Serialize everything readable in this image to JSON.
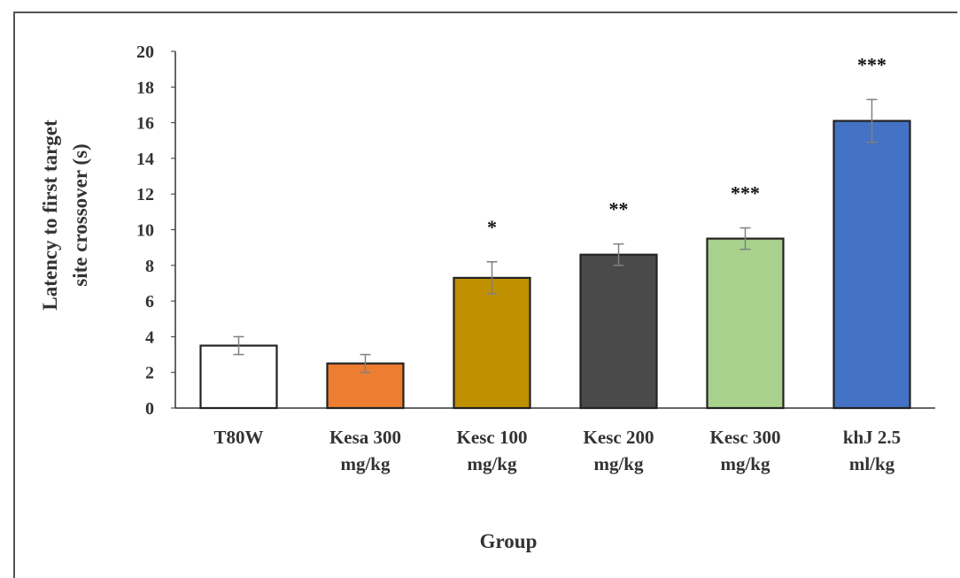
{
  "chart_data": {
    "type": "bar",
    "title": "",
    "xlabel": "Group",
    "ylabel_lines": [
      "Latency to first target",
      "site crossover (s)"
    ],
    "ylim": [
      0,
      20
    ],
    "yticks": [
      0,
      2,
      4,
      6,
      8,
      10,
      12,
      14,
      16,
      18,
      20
    ],
    "grid": false,
    "legend": "none",
    "categories": [
      [
        "T80W"
      ],
      [
        "Kesa 300",
        "mg/kg"
      ],
      [
        "Kesc 100",
        "mg/kg"
      ],
      [
        "Kesc 200",
        "mg/kg"
      ],
      [
        "Kesc 300",
        "mg/kg"
      ],
      [
        "khJ 2.5",
        "ml/kg"
      ]
    ],
    "values": [
      3.5,
      2.5,
      7.3,
      8.6,
      9.5,
      16.1
    ],
    "errors": [
      0.5,
      0.5,
      0.9,
      0.6,
      0.6,
      1.2
    ],
    "colors": [
      "#ffffff",
      "#ed7d31",
      "#bf9000",
      "#4a4a4a",
      "#a9d18e",
      "#4472c4"
    ],
    "significance": [
      "",
      "",
      "*",
      "**",
      "***",
      "***"
    ]
  }
}
